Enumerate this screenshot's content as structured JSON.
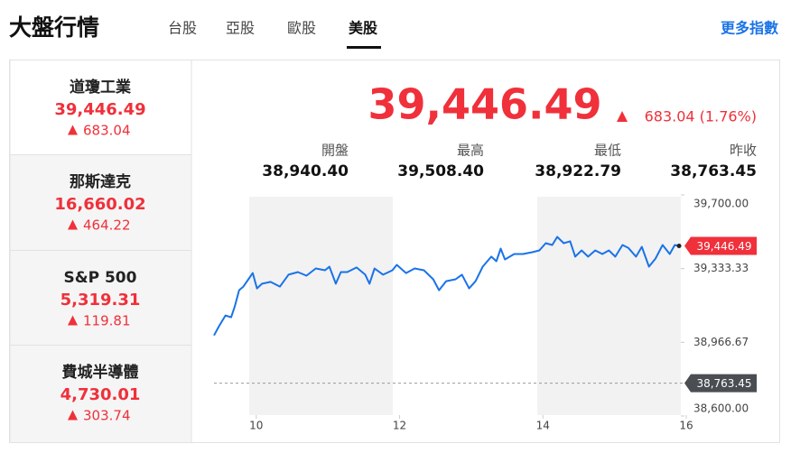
{
  "header": {
    "title": "大盤行情",
    "tabs": [
      "台股",
      "亞股",
      "歐股",
      "美股"
    ],
    "active_tab": 3,
    "more": "更多指數"
  },
  "indices": [
    {
      "name": "道瓊工業",
      "value": "39,446.49",
      "change": "683.04"
    },
    {
      "name": "那斯達克",
      "value": "16,660.02",
      "change": "464.22"
    },
    {
      "name": "S&P 500",
      "value": "5,319.31",
      "change": "119.81"
    },
    {
      "name": "費城半導體",
      "value": "4,730.01",
      "change": "303.74"
    }
  ],
  "quote": {
    "price": "39,446.49",
    "change": "683.04 (1.76%)",
    "stats": [
      {
        "label": "開盤",
        "value": "38,940.40"
      },
      {
        "label": "最高",
        "value": "39,508.40"
      },
      {
        "label": "最低",
        "value": "38,922.79"
      },
      {
        "label": "昨收",
        "value": "38,763.45"
      }
    ]
  },
  "chart_data": {
    "type": "line",
    "x": [
      9.41,
      9.48,
      9.57,
      9.65,
      9.7,
      9.76,
      9.82,
      9.89,
      9.95,
      10.01,
      10.08,
      10.2,
      10.33,
      10.45,
      10.58,
      10.7,
      10.83,
      10.96,
      11.02,
      11.11,
      11.18,
      11.27,
      11.4,
      11.52,
      11.58,
      11.65,
      11.77,
      11.9,
      11.96,
      12.09,
      12.21,
      12.34,
      12.47,
      12.55,
      12.65,
      12.78,
      12.87,
      12.97,
      13.06,
      13.16,
      13.28,
      13.35,
      13.41,
      13.47,
      13.6,
      13.72,
      13.85,
      13.95,
      14.04,
      14.13,
      14.2,
      14.29,
      14.38,
      14.45,
      14.54,
      14.63,
      14.73,
      14.83,
      14.92,
      15.01,
      15.11,
      15.19,
      15.3,
      15.38,
      15.48,
      15.57,
      15.67,
      15.77,
      15.84,
      15.9
    ],
    "series": [
      {
        "color": "#1a73e8",
        "values": [
          39001,
          39047,
          39100,
          39091,
          39145,
          39226,
          39244,
          39280,
          39311,
          39235,
          39258,
          39267,
          39244,
          39303,
          39316,
          39298,
          39334,
          39325,
          39343,
          39258,
          39316,
          39316,
          39339,
          39303,
          39258,
          39334,
          39303,
          39325,
          39352,
          39311,
          39334,
          39325,
          39280,
          39226,
          39271,
          39280,
          39303,
          39235,
          39271,
          39343,
          39393,
          39370,
          39433,
          39379,
          39406,
          39406,
          39415,
          39424,
          39460,
          39451,
          39491,
          39460,
          39469,
          39393,
          39424,
          39393,
          39424,
          39406,
          39424,
          39393,
          39451,
          39437,
          39393,
          39442,
          39343,
          39383,
          39451,
          39406,
          39451,
          39446.49
        ]
      }
    ],
    "xlim": [
      9.41,
      16
    ],
    "xticks": [
      10,
      12,
      14,
      16
    ],
    "ylim": [
      38600,
      39700
    ],
    "yticks": [
      {
        "value": 39700,
        "label": "39,700.00"
      },
      {
        "value": 39333.33,
        "label": "39,333.33"
      },
      {
        "value": 38966.67,
        "label": "38,966.67"
      },
      {
        "value": 38600,
        "label": "38,600.00"
      }
    ],
    "last_price": {
      "value": 39446.49,
      "label": "39,446.49",
      "color": "#f0303a"
    },
    "prev_close": {
      "value": 38763.45,
      "label": "38,763.45",
      "color": "#4a4d52"
    }
  }
}
